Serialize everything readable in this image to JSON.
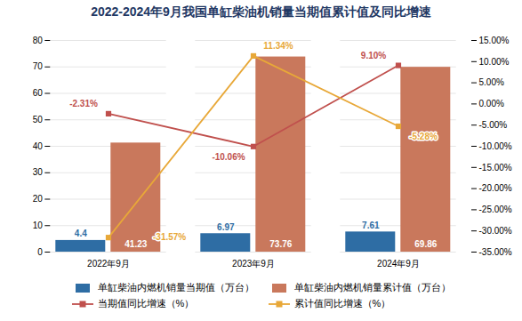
{
  "chart_data": {
    "type": "bar",
    "title": "2022-2024年9月我国单缸柴油机销量当期值累计值及同比增速",
    "categories": [
      "2022年9月",
      "2023年9月",
      "2024年9月"
    ],
    "series": [
      {
        "name": "单缸柴油内燃机销量当期值（万台）",
        "type": "bar",
        "color": "#2E6DA4",
        "values": [
          4.4,
          6.97,
          7.61
        ]
      },
      {
        "name": "单缸柴油内燃机销量累计值（万台）",
        "type": "bar",
        "color": "#C9785C",
        "values": [
          41.23,
          73.76,
          69.86
        ]
      },
      {
        "name": "当期值同比增速（%）",
        "type": "line",
        "axis": "y2",
        "color": "#C0504D",
        "marker": "square",
        "values": [
          -2.31,
          -10.06,
          9.1
        ],
        "value_labels": [
          "-2.31%",
          "-10.06%",
          "9.10%"
        ]
      },
      {
        "name": "累计值同比增速（%）",
        "type": "line",
        "axis": "y2",
        "color": "#E8A838",
        "marker": "square",
        "values": [
          -31.57,
          11.34,
          -5.28
        ],
        "value_labels": [
          "-31.57%",
          "11.34%",
          "-5.28%"
        ]
      }
    ],
    "ylim": [
      0,
      80
    ],
    "yticks": [
      0,
      10,
      20,
      30,
      40,
      50,
      60,
      70,
      80
    ],
    "y2lim": [
      -35,
      15
    ],
    "y2ticks": [
      {
        "value": -35,
        "label": "-35.00%"
      },
      {
        "value": -30,
        "label": "-30.00%"
      },
      {
        "value": -25,
        "label": "-25.00%"
      },
      {
        "value": -20,
        "label": "-20.00%"
      },
      {
        "value": -15,
        "label": "-15.00%"
      },
      {
        "value": -10,
        "label": "-10.00%"
      },
      {
        "value": -5,
        "label": "-5.00%"
      },
      {
        "value": 0,
        "label": "0.00%"
      },
      {
        "value": 5,
        "label": "5.00%"
      },
      {
        "value": 10,
        "label": "10.00%"
      },
      {
        "value": 15,
        "label": "15.00%"
      }
    ],
    "grid": true,
    "legend": "bottom",
    "data_labels": true
  }
}
